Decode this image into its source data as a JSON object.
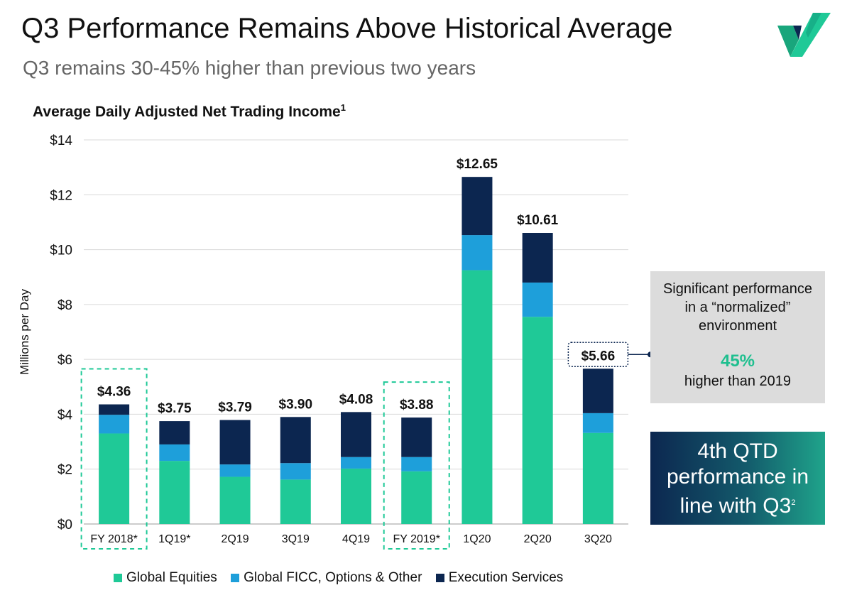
{
  "header": {
    "title": "Q3 Performance Remains Above Historical Average",
    "subtitle": "Q3 remains 30-45% higher than previous two years"
  },
  "logo": {
    "name": "logo-mark",
    "colors": [
      "#1fbf8f",
      "#0c2750"
    ]
  },
  "chart_title": {
    "text": "Average Daily Adjusted Net Trading Income",
    "footnote": "1"
  },
  "chart_data": {
    "type": "bar",
    "stacked": true,
    "title": "Average Daily Adjusted Net Trading Income",
    "xlabel": "",
    "ylabel": "Millions per Day",
    "ylim": [
      0,
      14
    ],
    "yticks": [
      0,
      2,
      4,
      6,
      8,
      10,
      12,
      14
    ],
    "ytick_labels": [
      "$0",
      "$2",
      "$4",
      "$6",
      "$8",
      "$10",
      "$12",
      "$14"
    ],
    "grid": true,
    "categories": [
      "FY 2018*",
      "1Q19*",
      "2Q19",
      "3Q19",
      "4Q19",
      "FY 2019*",
      "1Q20",
      "2Q20",
      "3Q20"
    ],
    "series": [
      {
        "name": "Global Equities",
        "color": "#1fc997",
        "values": [
          3.3,
          2.3,
          1.72,
          1.62,
          2.02,
          1.92,
          9.25,
          7.55,
          3.32
        ]
      },
      {
        "name": "Global FICC, Options & Other",
        "color": "#1e9fda",
        "values": [
          0.68,
          0.6,
          0.45,
          0.6,
          0.42,
          0.52,
          1.28,
          1.25,
          0.72
        ]
      },
      {
        "name": "Execution Services",
        "color": "#0c2650",
        "values": [
          0.38,
          0.85,
          1.62,
          1.68,
          1.64,
          1.44,
          2.12,
          1.81,
          1.62
        ]
      }
    ],
    "totals": [
      4.36,
      3.75,
      3.79,
      3.9,
      4.08,
      3.88,
      12.65,
      10.61,
      5.66
    ],
    "total_labels": [
      "$4.36",
      "$3.75",
      "$3.79",
      "$3.90",
      "$4.08",
      "$3.88",
      "$12.65",
      "$10.61",
      "$5.66"
    ],
    "highlighted_categories": [
      "FY 2018*",
      "FY 2019*"
    ],
    "boxed_total_category": "3Q20",
    "legend_position": "bottom"
  },
  "callout": {
    "line1": "Significant performance",
    "line2": "in a “normalized”",
    "line3": "environment",
    "pct": "45%",
    "line4": "higher than 2019"
  },
  "qtd": {
    "line1": "4th QTD",
    "line2": "performance in",
    "line3": "line with Q3",
    "footnote": "2"
  }
}
